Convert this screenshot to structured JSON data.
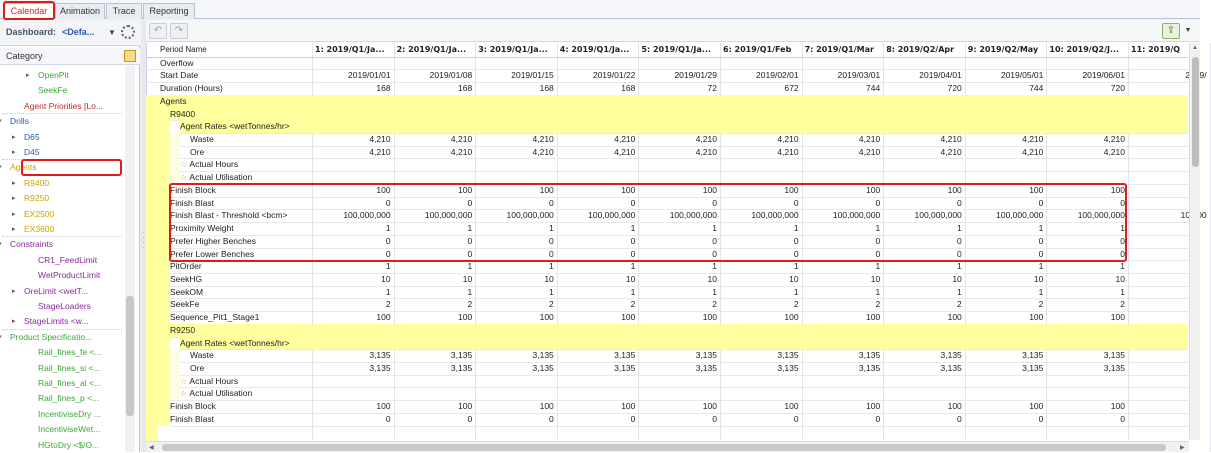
{
  "tabs": [
    "Calendar",
    "Animation",
    "Trace",
    "Reporting"
  ],
  "dashboard": {
    "label": "Dashboard:",
    "value": "<Defa..."
  },
  "category_label": "Category",
  "tree": [
    {
      "label": "OpenPit",
      "indent": 2,
      "twisty": "▸",
      "color": "#3aa63a"
    },
    {
      "label": "SeekFe",
      "indent": 2,
      "twisty": "",
      "color": "#3aa63a"
    },
    {
      "label": "Agent Priorities [Lo...",
      "indent": 1,
      "twisty": "",
      "color": "#c22a2a",
      "sep": true
    },
    {
      "label": "Drills",
      "indent": 0,
      "twisty": "▾",
      "color": "#2e58a8"
    },
    {
      "label": "D65",
      "indent": 1,
      "twisty": "▸",
      "color": "#2e58a8"
    },
    {
      "label": "D45",
      "indent": 1,
      "twisty": "▸",
      "color": "#2e58a8",
      "sep": true
    },
    {
      "label": "Agents",
      "indent": 0,
      "twisty": "▾",
      "color": "#c7a400",
      "boxed": true
    },
    {
      "label": "R9400",
      "indent": 1,
      "twisty": "▸",
      "color": "#c7a400"
    },
    {
      "label": "R9250",
      "indent": 1,
      "twisty": "▸",
      "color": "#c7a400"
    },
    {
      "label": "EX2500",
      "indent": 1,
      "twisty": "▸",
      "color": "#c7a400"
    },
    {
      "label": "EX3600",
      "indent": 1,
      "twisty": "▸",
      "color": "#c7a400",
      "sep": true
    },
    {
      "label": "Constraints",
      "indent": 0,
      "twisty": "▾",
      "color": "#8a2a9c"
    },
    {
      "label": "CR1_FeedLimit",
      "indent": 2,
      "twisty": "",
      "color": "#8a2a9c"
    },
    {
      "label": "WetProductLimit",
      "indent": 2,
      "twisty": "",
      "color": "#8a2a9c"
    },
    {
      "label": "OreLimit <wetT...",
      "indent": 1,
      "twisty": "▸",
      "color": "#8a2a9c"
    },
    {
      "label": "StageLoaders",
      "indent": 2,
      "twisty": "",
      "color": "#8a2a9c"
    },
    {
      "label": "StageLimits <w...",
      "indent": 1,
      "twisty": "▸",
      "color": "#8a2a9c",
      "sep": true
    },
    {
      "label": "Product Specificatio...",
      "indent": 0,
      "twisty": "▾",
      "color": "#3aa63a"
    },
    {
      "label": "Rail_fines_fe <...",
      "indent": 2,
      "twisty": "",
      "color": "#3aa63a"
    },
    {
      "label": "Rail_fines_si <...",
      "indent": 2,
      "twisty": "",
      "color": "#3aa63a"
    },
    {
      "label": "Rail_fines_al <...",
      "indent": 2,
      "twisty": "",
      "color": "#3aa63a"
    },
    {
      "label": "Rail_fines_p <...",
      "indent": 2,
      "twisty": "",
      "color": "#3aa63a"
    },
    {
      "label": "IncentiviseDry ...",
      "indent": 2,
      "twisty": "",
      "color": "#3aa63a"
    },
    {
      "label": "IncentiviseWet...",
      "indent": 2,
      "twisty": "",
      "color": "#3aa63a"
    },
    {
      "label": "HGtoDry <$/O...",
      "indent": 2,
      "twisty": "",
      "color": "#3aa63a"
    }
  ],
  "toolbar": {
    "undo_icon": "undo-icon",
    "redo_icon": "redo-icon",
    "export_icon": "export-icon"
  },
  "grid": {
    "columns": [
      {
        "header": "1: 2019/Q1/Ja...",
        "start": "2019/01/01",
        "duration": "168"
      },
      {
        "header": "2: 2019/Q1/Ja...",
        "start": "2019/01/08",
        "duration": "168"
      },
      {
        "header": "3: 2019/Q1/Ja...",
        "start": "2019/01/15",
        "duration": "168"
      },
      {
        "header": "4: 2019/Q1/Ja...",
        "start": "2019/01/22",
        "duration": "168"
      },
      {
        "header": "5: 2019/Q1/Ja...",
        "start": "2019/01/29",
        "duration": "72"
      },
      {
        "header": "6: 2019/Q1/Feb",
        "start": "2019/02/01",
        "duration": "672"
      },
      {
        "header": "7: 2019/Q1/Mar",
        "start": "2019/03/01",
        "duration": "744"
      },
      {
        "header": "8: 2019/Q2/Apr",
        "start": "2019/04/01",
        "duration": "720"
      },
      {
        "header": "9: 2019/Q2/May",
        "start": "2019/05/01",
        "duration": "744"
      },
      {
        "header": "10: 2019/Q2/J...",
        "start": "2019/06/01",
        "duration": "720"
      },
      {
        "header": "11: 2019/Q",
        "start": "2019/",
        "duration": ""
      }
    ],
    "row_labels": {
      "period": "Period Name",
      "overflow": "Overflow",
      "start": "Start Date",
      "duration": "Duration (Hours)"
    },
    "sections": [
      {
        "type": "band",
        "label": "Agents",
        "level": 0
      },
      {
        "type": "band",
        "label": "R9400",
        "level": 1
      },
      {
        "type": "band",
        "label": "Agent Rates <wetTonnes/hr>",
        "level": 2
      },
      {
        "type": "row",
        "label": "Waste",
        "level": 3,
        "values": [
          "4,210",
          "4,210",
          "4,210",
          "4,210",
          "4,210",
          "4,210",
          "4,210",
          "4,210",
          "4,210",
          "4,210",
          ""
        ]
      },
      {
        "type": "row",
        "label": "Ore",
        "level": 3,
        "values": [
          "4,210",
          "4,210",
          "4,210",
          "4,210",
          "4,210",
          "4,210",
          "4,210",
          "4,210",
          "4,210",
          "4,210",
          ""
        ]
      },
      {
        "type": "row",
        "label": "Actual Hours",
        "level": 2,
        "star": true,
        "values": []
      },
      {
        "type": "row",
        "label": "Actual Utilisation",
        "level": 2,
        "star": true,
        "values": []
      },
      {
        "type": "row",
        "label": "Finish Block",
        "level": 1,
        "values": [
          "100",
          "100",
          "100",
          "100",
          "100",
          "100",
          "100",
          "100",
          "100",
          "100",
          ""
        ]
      },
      {
        "type": "row",
        "label": "Finish Blast",
        "level": 1,
        "values": [
          "0",
          "0",
          "0",
          "0",
          "0",
          "0",
          "0",
          "0",
          "0",
          "0",
          ""
        ]
      },
      {
        "type": "row",
        "label": "Finish Blast - Threshold <bcm>",
        "level": 1,
        "values": [
          "100,000,000",
          "100,000,000",
          "100,000,000",
          "100,000,000",
          "100,000,000",
          "100,000,000",
          "100,000,000",
          "100,000,000",
          "100,000,000",
          "100,000,000",
          "100,00"
        ]
      },
      {
        "type": "row",
        "label": "Proximity Weight",
        "level": 1,
        "values": [
          "1",
          "1",
          "1",
          "1",
          "1",
          "1",
          "1",
          "1",
          "1",
          "1",
          ""
        ]
      },
      {
        "type": "row",
        "label": "Prefer Higher Benches",
        "level": 1,
        "values": [
          "0",
          "0",
          "0",
          "0",
          "0",
          "0",
          "0",
          "0",
          "0",
          "0",
          ""
        ]
      },
      {
        "type": "row",
        "label": "Prefer Lower Benches",
        "level": 1,
        "values": [
          "0",
          "0",
          "0",
          "0",
          "0",
          "0",
          "0",
          "0",
          "0",
          "0",
          ""
        ]
      },
      {
        "type": "row",
        "label": "PitOrder",
        "level": 1,
        "values": [
          "1",
          "1",
          "1",
          "1",
          "1",
          "1",
          "1",
          "1",
          "1",
          "1",
          ""
        ]
      },
      {
        "type": "row",
        "label": "SeekHG",
        "level": 1,
        "values": [
          "10",
          "10",
          "10",
          "10",
          "10",
          "10",
          "10",
          "10",
          "10",
          "10",
          ""
        ]
      },
      {
        "type": "row",
        "label": "SeekOM",
        "level": 1,
        "values": [
          "1",
          "1",
          "1",
          "1",
          "1",
          "1",
          "1",
          "1",
          "1",
          "1",
          ""
        ]
      },
      {
        "type": "row",
        "label": "SeekFe",
        "level": 1,
        "values": [
          "2",
          "2",
          "2",
          "2",
          "2",
          "2",
          "2",
          "2",
          "2",
          "2",
          ""
        ]
      },
      {
        "type": "row",
        "label": "Sequence_Pit1_Stage1",
        "level": 1,
        "values": [
          "100",
          "100",
          "100",
          "100",
          "100",
          "100",
          "100",
          "100",
          "100",
          "100",
          ""
        ]
      },
      {
        "type": "band",
        "label": "R9250",
        "level": 1
      },
      {
        "type": "band",
        "label": "Agent Rates <wetTonnes/hr>",
        "level": 2
      },
      {
        "type": "row",
        "label": "Waste",
        "level": 3,
        "values": [
          "3,135",
          "3,135",
          "3,135",
          "3,135",
          "3,135",
          "3,135",
          "3,135",
          "3,135",
          "3,135",
          "3,135",
          ""
        ]
      },
      {
        "type": "row",
        "label": "Ore",
        "level": 3,
        "values": [
          "3,135",
          "3,135",
          "3,135",
          "3,135",
          "3,135",
          "3,135",
          "3,135",
          "3,135",
          "3,135",
          "3,135",
          ""
        ]
      },
      {
        "type": "row",
        "label": "Actual Hours",
        "level": 2,
        "star": true,
        "values": []
      },
      {
        "type": "row",
        "label": "Actual Utilisation",
        "level": 2,
        "star": true,
        "values": []
      },
      {
        "type": "row",
        "label": "Finish Block",
        "level": 1,
        "values": [
          "100",
          "100",
          "100",
          "100",
          "100",
          "100",
          "100",
          "100",
          "100",
          "100",
          ""
        ]
      },
      {
        "type": "row",
        "label": "Finish Blast",
        "level": 1,
        "values": [
          "0",
          "0",
          "0",
          "0",
          "0",
          "0",
          "0",
          "0",
          "0",
          "0",
          ""
        ]
      }
    ]
  },
  "colors": {
    "highlight": "#e01b1b",
    "band_yellow": "#ffff9e",
    "band_pale": "#fdfde0"
  }
}
